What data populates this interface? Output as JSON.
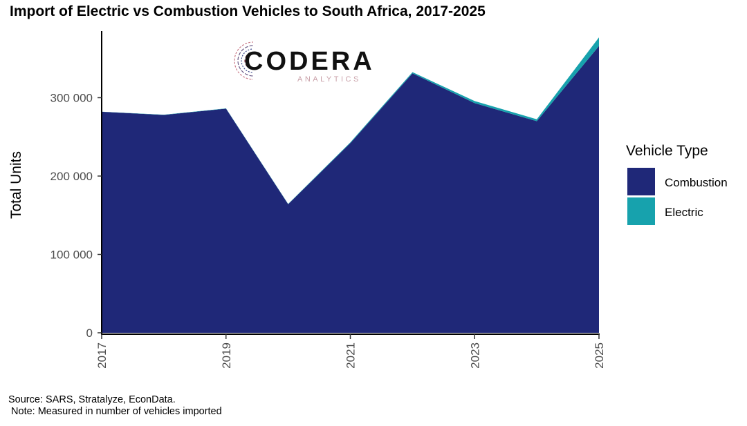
{
  "title": "Import of Electric vs Combustion Vehicles to South Africa, 2017-2025",
  "logo": {
    "name": "CODERA",
    "tagline": "ANALYTICS"
  },
  "footer": {
    "source": "Source: SARS, Stratalyze, EconData.",
    "note": " Note: Measured in number of vehicles imported"
  },
  "legend": {
    "title": "Vehicle Type",
    "items": [
      {
        "label": "Combustion",
        "color": "#1f2878"
      },
      {
        "label": "Electric",
        "color": "#17a2ad"
      }
    ]
  },
  "chart_data": {
    "type": "area",
    "stacked": true,
    "title": "Import of Electric vs Combustion Vehicles to South Africa, 2017-2025",
    "xlabel": "",
    "ylabel": "Total Units",
    "x": [
      2017,
      2018,
      2019,
      2020,
      2021,
      2022,
      2023,
      2024,
      2025
    ],
    "xticks": [
      2017,
      2019,
      2021,
      2023,
      2025
    ],
    "xlim": [
      2017,
      2025
    ],
    "ylim": [
      0,
      385000
    ],
    "yticks": [
      0,
      100000,
      200000,
      300000
    ],
    "ytick_labels": [
      "0",
      "100 000",
      "200 000",
      "300 000"
    ],
    "series": [
      {
        "name": "Combustion",
        "color": "#1f2878",
        "values": [
          282000,
          278000,
          286000,
          164000,
          242000,
          331000,
          293000,
          270000,
          366000
        ]
      },
      {
        "name": "Electric",
        "color": "#17a2ad",
        "values": [
          200,
          300,
          300,
          400,
          1000,
          1600,
          2700,
          2500,
          11000
        ]
      }
    ]
  }
}
